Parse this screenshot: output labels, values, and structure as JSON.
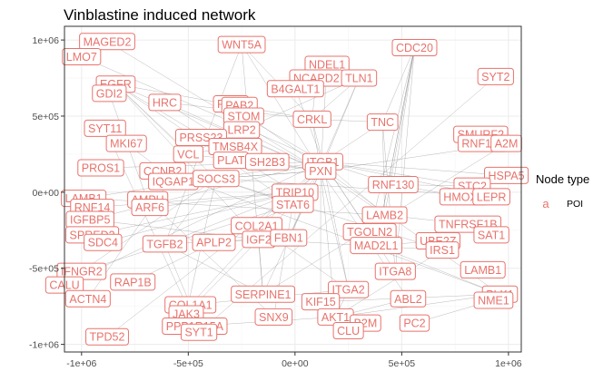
{
  "chart_data": {
    "type": "scatter",
    "title": "Vinblastine induced network",
    "xlabel": "",
    "ylabel": "",
    "xlim": [
      -1080000,
      1060000
    ],
    "ylim": [
      -1050000,
      1090000
    ],
    "grid": true,
    "x_ticks": [
      {
        "value": -1000000,
        "label": "-1e+06"
      },
      {
        "value": -500000,
        "label": "-5e+05"
      },
      {
        "value": 0,
        "label": "0e+00"
      },
      {
        "value": 500000,
        "label": "5e+05"
      },
      {
        "value": 1000000,
        "label": "1e+06"
      }
    ],
    "y_ticks": [
      {
        "value": 1000000,
        "label": "1e+06"
      },
      {
        "value": 500000,
        "label": "5e+05"
      },
      {
        "value": 0,
        "label": "0e+00"
      },
      {
        "value": -500000,
        "label": "-5e+05"
      },
      {
        "value": -1000000,
        "label": "-1e+06"
      }
    ],
    "legend": {
      "title": "Node type",
      "key_symbol": "a",
      "entries": [
        "POI"
      ],
      "position": "right"
    },
    "colors": {
      "node": "#E8736C",
      "node_text": "#E8736C",
      "edge": "#808080",
      "grid_major": "#EBEBEB",
      "grid_minor": "#F5F5F5",
      "panel_border": "#333333"
    },
    "nodes": [
      {
        "label": "MAGED2",
        "x": -880000,
        "y": 990000
      },
      {
        "label": "LMO7",
        "x": -1000000,
        "y": 890000
      },
      {
        "label": "WNT5A",
        "x": -250000,
        "y": 970000
      },
      {
        "label": "CDC20",
        "x": 560000,
        "y": 950000
      },
      {
        "label": "NDEL1",
        "x": 150000,
        "y": 840000
      },
      {
        "label": "SYT2",
        "x": 940000,
        "y": 760000
      },
      {
        "label": "NCAPD2",
        "x": 100000,
        "y": 750000
      },
      {
        "label": "TLN1",
        "x": 300000,
        "y": 750000
      },
      {
        "label": "B4GALT1",
        "x": 2000,
        "y": 680000
      },
      {
        "label": "EGFR",
        "x": -840000,
        "y": 710000
      },
      {
        "label": "GDI2",
        "x": -870000,
        "y": 650000
      },
      {
        "label": "HRC",
        "x": -610000,
        "y": 590000
      },
      {
        "label": "PLK2",
        "x": -300000,
        "y": 580000
      },
      {
        "label": "PAB2",
        "x": -260000,
        "y": 570000
      },
      {
        "label": "STOM",
        "x": -240000,
        "y": 500000
      },
      {
        "label": "CRKL",
        "x": 80000,
        "y": 480000
      },
      {
        "label": "TNC",
        "x": 410000,
        "y": 460000
      },
      {
        "label": "SYT11",
        "x": -890000,
        "y": 420000
      },
      {
        "label": "LRP2",
        "x": -250000,
        "y": 410000
      },
      {
        "label": "SMURF2",
        "x": 870000,
        "y": 380000
      },
      {
        "label": "PRSS23",
        "x": -440000,
        "y": 360000
      },
      {
        "label": "MKI67",
        "x": -790000,
        "y": 320000
      },
      {
        "label": "TMSB4X",
        "x": -280000,
        "y": 300000
      },
      {
        "label": "RNF138",
        "x": 880000,
        "y": 320000
      },
      {
        "label": "A2M",
        "x": 990000,
        "y": 320000
      },
      {
        "label": "VCL",
        "x": -500000,
        "y": 250000
      },
      {
        "label": "PLAT",
        "x": -300000,
        "y": 210000
      },
      {
        "label": "SH2B3",
        "x": -130000,
        "y": 200000
      },
      {
        "label": "ITGB1",
        "x": 130000,
        "y": 200000
      },
      {
        "label": "PROS1",
        "x": -910000,
        "y": 160000
      },
      {
        "label": "CCNB2",
        "x": -620000,
        "y": 140000
      },
      {
        "label": "PXN",
        "x": 120000,
        "y": 140000
      },
      {
        "label": "HSPA5",
        "x": 990000,
        "y": 110000
      },
      {
        "label": "IQGAP1",
        "x": -570000,
        "y": 70000
      },
      {
        "label": "SOCS3",
        "x": -370000,
        "y": 90000
      },
      {
        "label": "RNF130",
        "x": 460000,
        "y": 50000
      },
      {
        "label": "STC2",
        "x": 830000,
        "y": 40000
      },
      {
        "label": "TRIP10",
        "x": 0,
        "y": 0
      },
      {
        "label": "HMOX1",
        "x": 790000,
        "y": -30000
      },
      {
        "label": "LEPR",
        "x": 920000,
        "y": -30000
      },
      {
        "label": "LAMB1",
        "x": -990000,
        "y": -40000
      },
      {
        "label": "AMPH",
        "x": -690000,
        "y": -50000
      },
      {
        "label": "STAT6",
        "x": -10000,
        "y": -80000
      },
      {
        "label": "RNF14",
        "x": -950000,
        "y": -100000
      },
      {
        "label": "ARF6",
        "x": -680000,
        "y": -100000
      },
      {
        "label": "IGFBP5",
        "x": -960000,
        "y": -180000
      },
      {
        "label": "LAMB2",
        "x": 420000,
        "y": -150000
      },
      {
        "label": "TNFRSF1B",
        "x": 810000,
        "y": -210000
      },
      {
        "label": "COL2A1",
        "x": -180000,
        "y": -220000
      },
      {
        "label": "SPRED2",
        "x": -950000,
        "y": -280000
      },
      {
        "label": "TGOLN2",
        "x": 350000,
        "y": -260000
      },
      {
        "label": "SAT1",
        "x": 920000,
        "y": -280000
      },
      {
        "label": "SDC4",
        "x": -900000,
        "y": -330000
      },
      {
        "label": "TGFB2",
        "x": -610000,
        "y": -340000
      },
      {
        "label": "APLP2",
        "x": -380000,
        "y": -330000
      },
      {
        "label": "IGF2",
        "x": -170000,
        "y": -310000
      },
      {
        "label": "FBN1",
        "x": -30000,
        "y": -300000
      },
      {
        "label": "MAD2L1",
        "x": 380000,
        "y": -350000
      },
      {
        "label": "UBE2Z",
        "x": 670000,
        "y": -320000
      },
      {
        "label": "IRS1",
        "x": 690000,
        "y": -380000
      },
      {
        "label": "IFNGR2",
        "x": -1000000,
        "y": -520000
      },
      {
        "label": "LAMB1",
        "x": 880000,
        "y": -510000
      },
      {
        "label": "ITGA8",
        "x": 470000,
        "y": -520000
      },
      {
        "label": "CALU",
        "x": -1080000,
        "y": -610000
      },
      {
        "label": "RAP1B",
        "x": -760000,
        "y": -590000
      },
      {
        "label": "ITGA2",
        "x": 250000,
        "y": -640000
      },
      {
        "label": "PLK1",
        "x": 960000,
        "y": -670000
      },
      {
        "label": "ACTN4",
        "x": -970000,
        "y": -700000
      },
      {
        "label": "SERPINE1",
        "x": -150000,
        "y": -670000
      },
      {
        "label": "ABL2",
        "x": 530000,
        "y": -700000
      },
      {
        "label": "NME1",
        "x": 930000,
        "y": -710000
      },
      {
        "label": "KIF15",
        "x": 120000,
        "y": -720000
      },
      {
        "label": "COL1A1",
        "x": -490000,
        "y": -740000
      },
      {
        "label": "JAK3",
        "x": -510000,
        "y": -800000
      },
      {
        "label": "SNX9",
        "x": -100000,
        "y": -820000
      },
      {
        "label": "AKT1",
        "x": 190000,
        "y": -820000
      },
      {
        "label": "PPP1R15A",
        "x": -470000,
        "y": -880000
      },
      {
        "label": "B2M",
        "x": 330000,
        "y": -860000
      },
      {
        "label": "PC2",
        "x": 560000,
        "y": -860000
      },
      {
        "label": "SYT1",
        "x": -450000,
        "y": -920000
      },
      {
        "label": "CLU",
        "x": 250000,
        "y": -910000
      },
      {
        "label": "TPD52",
        "x": -880000,
        "y": -950000
      }
    ],
    "edges": [
      [
        "CDC20",
        "TNC"
      ],
      [
        "CDC20",
        "RNF130"
      ],
      [
        "CDC20",
        "LAMB2"
      ],
      [
        "CDC20",
        "TGOLN2"
      ],
      [
        "CDC20",
        "MAD2L1"
      ],
      [
        "CDC20",
        "ITGA8"
      ],
      [
        "WNT5A",
        "PXN"
      ],
      [
        "WNT5A",
        "CRKL"
      ],
      [
        "WNT5A",
        "TGFB2"
      ],
      [
        "WNT5A",
        "SERPINE1"
      ],
      [
        "NDEL1",
        "PXN"
      ],
      [
        "TLN1",
        "PXN"
      ],
      [
        "TLN1",
        "ITGB1"
      ],
      [
        "TLN1",
        "CRKL"
      ],
      [
        "NCAPD2",
        "CRKL"
      ],
      [
        "EGFR",
        "PXN"
      ],
      [
        "EGFR",
        "SOCS3"
      ],
      [
        "EGFR",
        "CRKL"
      ],
      [
        "EGFR",
        "STAT6"
      ],
      [
        "EGFR",
        "IGF2"
      ],
      [
        "EGFR",
        "VCL"
      ],
      [
        "EGFR",
        "TRIP10"
      ],
      [
        "HRC",
        "PXN"
      ],
      [
        "HRC",
        "CRKL"
      ],
      [
        "HRC",
        "TMSB4X"
      ],
      [
        "PLK2",
        "PLK1"
      ],
      [
        "STOM",
        "ITGB1"
      ],
      [
        "LRP2",
        "PXN"
      ],
      [
        "CRKL",
        "PXN"
      ],
      [
        "CRKL",
        "ITGB1"
      ],
      [
        "CRKL",
        "TNC"
      ],
      [
        "TNC",
        "ITGB1"
      ],
      [
        "TNC",
        "ITGA8"
      ],
      [
        "TNC",
        "LAMB2"
      ],
      [
        "PXN",
        "ITGB1"
      ],
      [
        "PXN",
        "VCL"
      ],
      [
        "PXN",
        "SH2B3"
      ],
      [
        "PXN",
        "TRIP10"
      ],
      [
        "PXN",
        "STAT6"
      ],
      [
        "PXN",
        "IQGAP1"
      ],
      [
        "PXN",
        "SOCS3"
      ],
      [
        "PXN",
        "LAMB2"
      ],
      [
        "PXN",
        "FBN1"
      ],
      [
        "PXN",
        "ITGA2"
      ],
      [
        "PXN",
        "KIF15"
      ],
      [
        "PXN",
        "AKT1"
      ],
      [
        "PXN",
        "ABL2"
      ],
      [
        "PXN",
        "SERPINE1"
      ],
      [
        "ITGB1",
        "LAMB1"
      ],
      [
        "ITGB1",
        "LAMB2"
      ],
      [
        "ITGB1",
        "COL2A1"
      ],
      [
        "ITGB1",
        "FBN1"
      ],
      [
        "ITGB1",
        "ITGA2"
      ],
      [
        "ITGB1",
        "ITGA8"
      ],
      [
        "ITGB1",
        "TGOLN2"
      ],
      [
        "ITGB1",
        "COL1A1"
      ],
      [
        "ITGB1",
        "RNF130"
      ],
      [
        "ITGB1",
        "STC2"
      ],
      [
        "ITGB1",
        "HSPA5"
      ],
      [
        "ITGB1",
        "LEPR"
      ],
      [
        "ITGB1",
        "IGFBP5"
      ],
      [
        "ITGB1",
        "CALU"
      ],
      [
        "SOCS3",
        "STAT6"
      ],
      [
        "SOCS3",
        "JAK3"
      ],
      [
        "SOCS3",
        "IRS1"
      ],
      [
        "SOCS3",
        "LEPR"
      ],
      [
        "SOCS3",
        "IFNGR2"
      ],
      [
        "SOCS3",
        "TGFB2"
      ],
      [
        "TRIP10",
        "STAT6"
      ],
      [
        "TRIP10",
        "SDC4"
      ],
      [
        "TRIP10",
        "TGFB2"
      ],
      [
        "TRIP10",
        "SPRED2"
      ],
      [
        "TRIP10",
        "ARF6"
      ],
      [
        "TRIP10",
        "RNF14"
      ],
      [
        "IGF2",
        "IGFBP5"
      ],
      [
        "IGF2",
        "IRS1"
      ],
      [
        "IGF2",
        "APLP2"
      ],
      [
        "IGF2",
        "TGFB2"
      ],
      [
        "IGF2",
        "SERPINE1"
      ],
      [
        "AKT1",
        "IRS1"
      ],
      [
        "AKT1",
        "PLK1"
      ],
      [
        "AKT1",
        "ABL2"
      ],
      [
        "AKT1",
        "CLU"
      ],
      [
        "AKT1",
        "B2M"
      ],
      [
        "AKT1",
        "ITGA2"
      ],
      [
        "STAT6",
        "JAK3"
      ],
      [
        "STAT6",
        "SNX9"
      ],
      [
        "STAT6",
        "RAP1B"
      ],
      [
        "STAT6",
        "IFNGR2"
      ],
      [
        "MAD2L1",
        "UBE2Z"
      ],
      [
        "MAD2L1",
        "PLK1"
      ],
      [
        "MAD2L1",
        "CDC20"
      ],
      [
        "LAMB2",
        "LAMB1"
      ],
      [
        "LAMB2",
        "TNFRSF1B"
      ],
      [
        "RNF130",
        "STC2"
      ],
      [
        "RNF130",
        "HMOX1"
      ],
      [
        "A2M",
        "SERPINE1"
      ],
      [
        "A2M",
        "PXN"
      ],
      [
        "SYT2",
        "SYT1"
      ],
      [
        "SYT11",
        "SYT1"
      ],
      [
        "VCL",
        "TMSB4X"
      ],
      [
        "VCL",
        "ACTN4"
      ],
      [
        "VCL",
        "TLN1"
      ],
      [
        "PROS1",
        "ITGB1"
      ],
      [
        "CCNB2",
        "PLK1"
      ],
      [
        "CCNB2",
        "MKI67"
      ],
      [
        "AMPH",
        "SNX9"
      ],
      [
        "TGFB2",
        "SERPINE1"
      ],
      [
        "TGFB2",
        "COL1A1"
      ],
      [
        "COL2A1",
        "ITGA2"
      ],
      [
        "COL1A1",
        "ITGA2"
      ],
      [
        "TPD52",
        "PXN"
      ],
      [
        "PPP1R15A",
        "AKT1"
      ],
      [
        "KIF15",
        "PLK1"
      ],
      [
        "NME1",
        "PC2"
      ],
      [
        "GDI2",
        "ARF6"
      ],
      [
        "MAGED2",
        "PXN"
      ],
      [
        "LMO7",
        "ITGB1"
      ],
      [
        "B4GALT1",
        "ITGB1"
      ]
    ]
  }
}
